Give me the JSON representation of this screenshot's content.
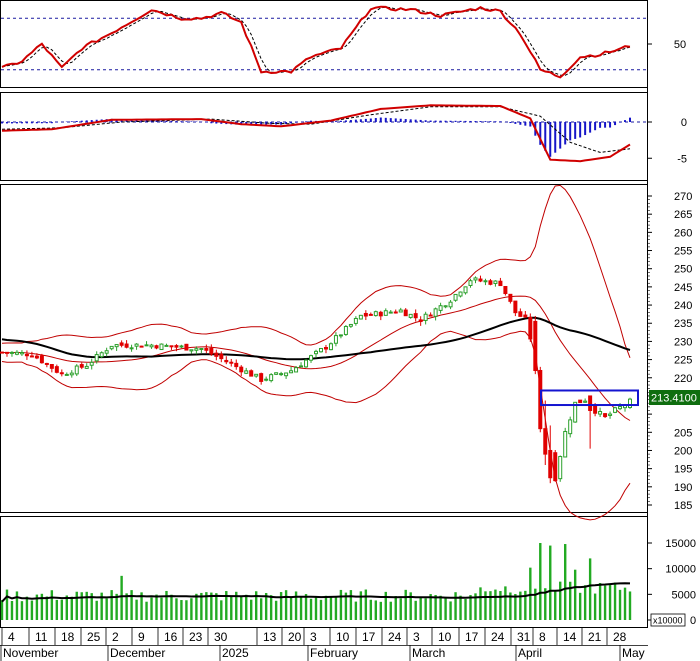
{
  "colors": {
    "up": "#2ca02c",
    "down": "#e00000",
    "indicator_line": "#d00000",
    "signal": "#000000",
    "macd_hist": "#1515c8",
    "ma": "#000000",
    "bollinger": "#c00000",
    "volume_bar": "#22aa22",
    "volume_ma": "#000000",
    "highlight_box": "#1414d0",
    "price_tag_bg": "#0f6e0f",
    "guide_line": "#1a1aa0"
  },
  "current_price_label": "213.4100",
  "volume_unit": "x10000",
  "chart_data": [
    {
      "type": "line",
      "panel": "oscillator",
      "ylim": [
        0,
        100
      ],
      "yticks": [
        50
      ],
      "guide_levels": [
        20,
        80
      ],
      "series": []
    },
    {
      "type": "bar",
      "panel": "macd",
      "ylim": [
        -8,
        4
      ],
      "yticks": [
        0,
        -5
      ],
      "series": []
    },
    {
      "type": "line",
      "panel": "price",
      "ylim": [
        185,
        272
      ],
      "yticks": [
        270,
        265,
        260,
        255,
        250,
        245,
        240,
        235,
        230,
        225,
        220,
        215,
        210,
        205,
        200,
        195,
        190,
        185
      ],
      "last_price": 213.41,
      "series": []
    },
    {
      "type": "bar",
      "panel": "volume",
      "ylim": [
        0,
        17000
      ],
      "yticks": [
        15000,
        10000,
        5000,
        0
      ],
      "series": []
    }
  ],
  "x_axis": {
    "day_ticks": [
      "4",
      "11",
      "18",
      "25",
      "2",
      "9",
      "16",
      "23",
      "30",
      "13",
      "20",
      "3",
      "10",
      "17",
      "24",
      "3",
      "10",
      "17",
      "24",
      "31",
      "8",
      "14",
      "21",
      "28"
    ],
    "month_ticks": [
      "November",
      "December",
      "2025",
      "February",
      "March",
      "April",
      "May"
    ]
  }
}
